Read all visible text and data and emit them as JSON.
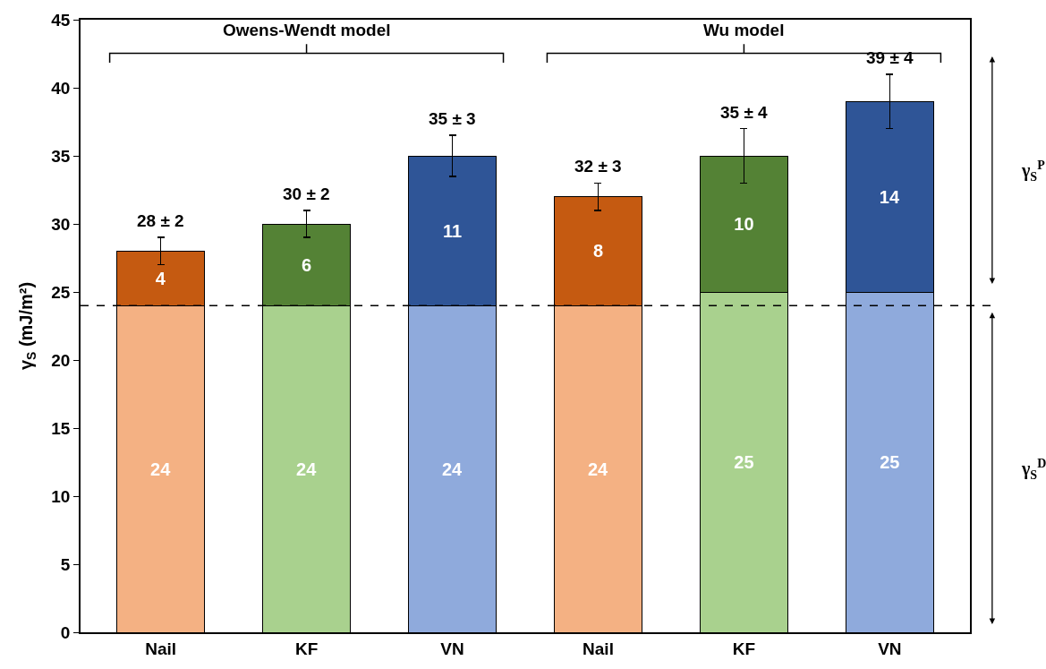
{
  "chart_data": {
    "type": "bar",
    "stacked": true,
    "categories": [
      "Nail",
      "KF",
      "VN",
      "Nail",
      "KF",
      "VN"
    ],
    "ylabel": "γ$_{S}$ (mJ/m²)",
    "series": [
      {
        "colors": [
          "#f4b183",
          "#a9d18e",
          "#8faadc",
          "#f4b183",
          "#a9d18e",
          "#8faadc"
        ],
        "values": [
          24,
          24,
          24,
          24,
          25,
          25
        ]
      },
      {
        "colors": [
          "#c55a11",
          "#548235",
          "#2f5597",
          "#c55a11",
          "#548235",
          "#2f5597"
        ],
        "values": [
          4,
          6,
          11,
          8,
          10,
          14
        ],
        "errors": [
          1,
          1,
          1.5,
          1,
          2,
          2
        ]
      }
    ],
    "data_labels": true,
    "totals": [
      "28 ± 2",
      "30 ± 2",
      "35 ± 3",
      "32 ± 3",
      "35 ± 4",
      "39 ± 4"
    ],
    "ylim": [
      0,
      45
    ],
    "yticks": [
      0,
      5,
      10,
      15,
      20,
      25,
      30,
      35,
      40,
      45
    ],
    "ref_lines": [
      {
        "axis": "y",
        "value": 24,
        "color": "#000000",
        "line_style": "dashed"
      }
    ],
    "annotations": [
      "Owens-Wendt model",
      "Wu model",
      "γ$_{S}$$^{P}$",
      "γ$_{S}$$^{D}$"
    ],
    "grid": false,
    "legend": false
  }
}
